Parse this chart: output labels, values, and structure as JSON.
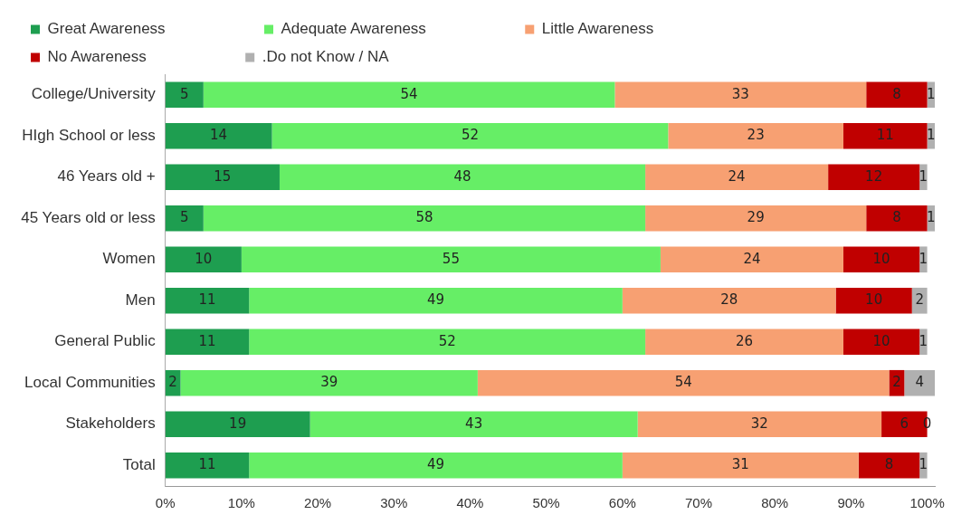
{
  "chart_data": {
    "type": "bar",
    "orientation": "horizontal",
    "stacked": true,
    "data_labels": true,
    "legend": "top",
    "grid": false,
    "categories": [
      "College/University",
      "HIgh School or less",
      "46 Years old +",
      "45 Years old or less",
      "Women",
      "Men",
      "General Public",
      "Local Communities",
      "Stakeholders",
      "Total"
    ],
    "xlim": [
      0,
      101
    ],
    "xticks": [
      {
        "value": 0,
        "label": "0%"
      },
      {
        "value": 10,
        "label": "10%"
      },
      {
        "value": 20,
        "label": "20%"
      },
      {
        "value": 30,
        "label": "30%"
      },
      {
        "value": 40,
        "label": "40%"
      },
      {
        "value": 50,
        "label": "50%"
      },
      {
        "value": 60,
        "label": "60%"
      },
      {
        "value": 70,
        "label": "70%"
      },
      {
        "value": 80,
        "label": "80%"
      },
      {
        "value": 90,
        "label": "90%"
      },
      {
        "value": 100,
        "label": "100%"
      }
    ],
    "series": [
      {
        "name": "Great Awareness",
        "color": "#1e9e50",
        "values": [
          5,
          14,
          15,
          5,
          10,
          11,
          11,
          2,
          19,
          11
        ]
      },
      {
        "name": "Adequate Awareness",
        "color": "#66ee66",
        "values": [
          54,
          52,
          48,
          58,
          55,
          49,
          52,
          39,
          43,
          49
        ]
      },
      {
        "name": "Little Awareness",
        "color": "#f7a072",
        "values": [
          33,
          23,
          24,
          29,
          24,
          28,
          26,
          54,
          32,
          31
        ]
      },
      {
        "name": "No Awareness",
        "color": "#c00000",
        "values": [
          8,
          11,
          12,
          8,
          10,
          10,
          10,
          2,
          6,
          8
        ]
      },
      {
        "name": ".Do not Know / NA",
        "color": "#b0b0b0",
        "values": [
          1,
          1,
          1,
          1,
          1,
          2,
          1,
          4,
          0,
          1
        ]
      }
    ]
  }
}
